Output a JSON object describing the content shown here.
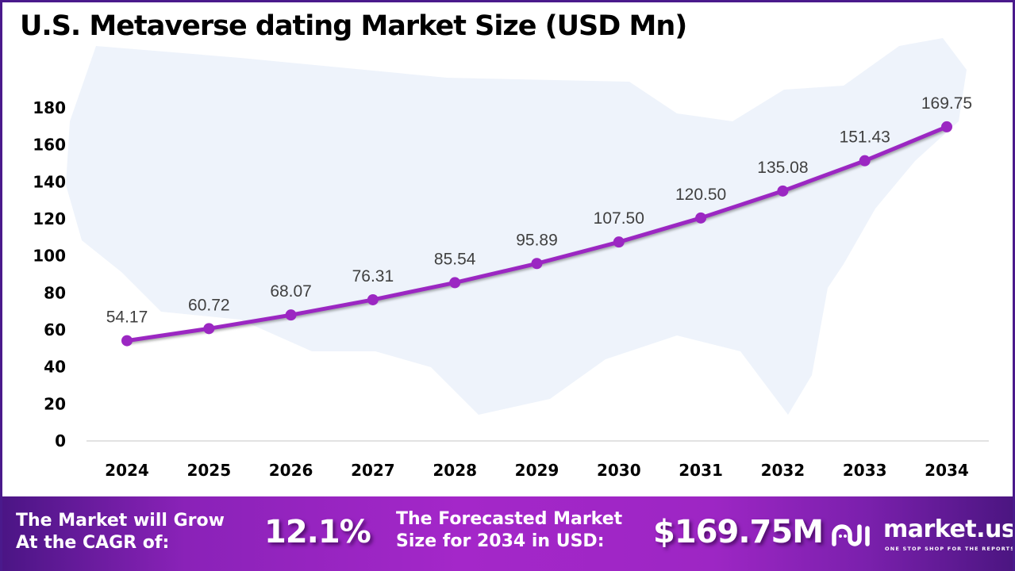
{
  "title": "U.S. Metaverse dating Market Size (USD Mn)",
  "colors": {
    "line": "#9b27c2",
    "marker": "#9b27c2",
    "frame": "#4a1a8c",
    "map": "#eef3fb",
    "axis": "#d9d9d9"
  },
  "chart_data": {
    "type": "line",
    "title": "U.S. Metaverse dating Market Size (USD Mn)",
    "xlabel": "",
    "ylabel": "",
    "categories": [
      "2024",
      "2025",
      "2026",
      "2027",
      "2028",
      "2029",
      "2030",
      "2031",
      "2032",
      "2033",
      "2034"
    ],
    "series": [
      {
        "name": "Market Size (USD Mn)",
        "values": [
          54.17,
          60.72,
          68.07,
          76.31,
          85.54,
          95.89,
          107.5,
          120.5,
          135.08,
          151.43,
          169.75
        ]
      }
    ],
    "data_labels": [
      "54.17",
      "60.72",
      "68.07",
      "76.31",
      "85.54",
      "95.89",
      "107.50",
      "120.50",
      "135.08",
      "151.43",
      "169.75"
    ],
    "yticks": [
      "0",
      "20",
      "40",
      "60",
      "80",
      "100",
      "120",
      "140",
      "160",
      "180"
    ],
    "ylim": [
      0,
      180
    ],
    "grid": false,
    "legend": "none"
  },
  "footer": {
    "cagr_label_line1": "The Market will Grow",
    "cagr_label_line2": "At the CAGR of:",
    "cagr_value": "12.1%",
    "forecast_label_line1": "The Forecasted Market",
    "forecast_label_line2": "Size for 2034 in USD:",
    "forecast_value": "$169.75M",
    "brand_name": "market.us",
    "brand_tagline": "ONE STOP SHOP FOR THE REPORTS",
    "brand_icon": "market-us-logo-icon"
  }
}
